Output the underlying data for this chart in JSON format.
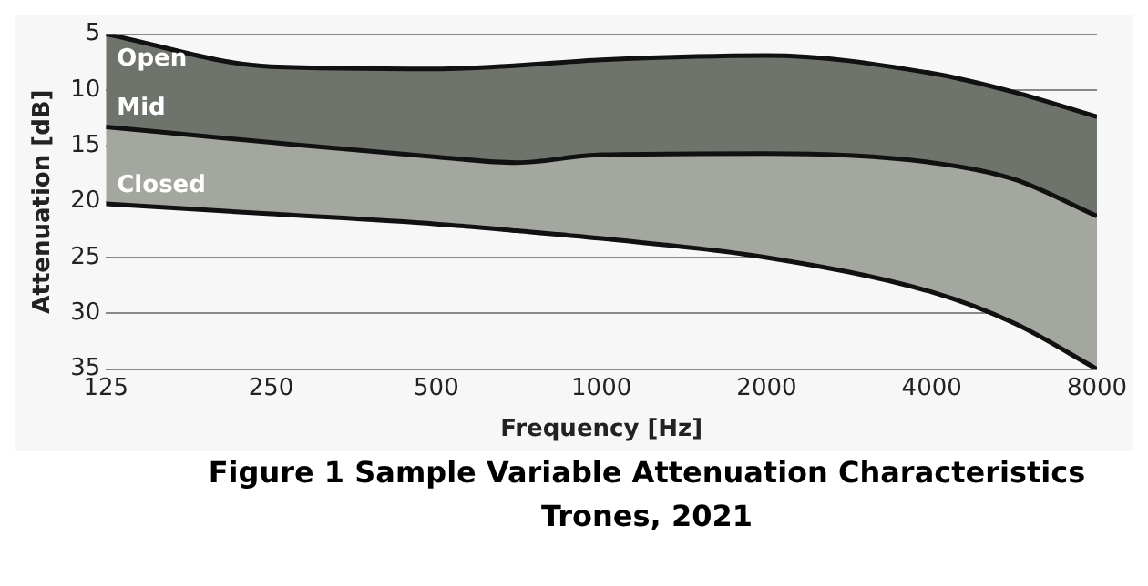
{
  "chart_data": {
    "type": "line",
    "xlabel": "Frequency [Hz]",
    "ylabel": "Attenuation [dB]",
    "log": "x",
    "xlim": [
      125,
      8000
    ],
    "xticks": [
      125,
      250,
      500,
      1000,
      2000,
      4000,
      8000
    ],
    "ylim": [
      35,
      5
    ],
    "yticks": [
      5,
      10,
      15,
      20,
      25,
      30,
      35
    ],
    "grid": "y",
    "legend": false,
    "x": [
      125,
      250,
      500,
      700,
      1000,
      2000,
      4000,
      5657,
      8000
    ],
    "series": [
      {
        "name": "Open",
        "color": "#1c1c1c",
        "values": [
          5,
          7.9,
          8.1,
          7.8,
          7.3,
          6.9,
          8.5,
          10.2,
          12.4
        ]
      },
      {
        "name": "Mid",
        "type": "area",
        "color": "#6e736b",
        "values": [
          13.3,
          14.7,
          16,
          16.5,
          15.8,
          15.7,
          16.5,
          18,
          21.3
        ]
      },
      {
        "name": "Closed",
        "type": "area",
        "color": "#a3a7a0",
        "values": [
          20.2,
          21.1,
          22,
          22.6,
          23.3,
          25,
          28.1,
          30.9,
          35
        ]
      }
    ],
    "annotations": [
      "Figure 1 Sample Variable Attenuation Characteristics",
      "Trones, 2021"
    ]
  }
}
